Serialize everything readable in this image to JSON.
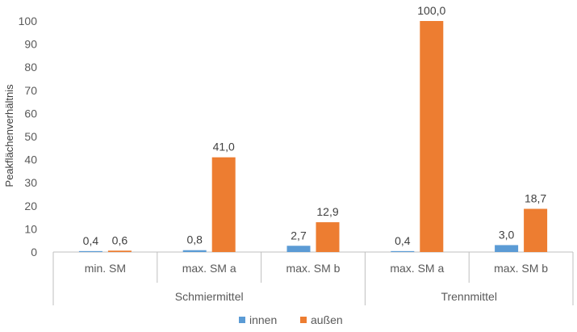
{
  "chart_data": {
    "type": "bar",
    "title": "",
    "xlabel": "",
    "ylabel": "Peakflächenverhältnis",
    "ylim": [
      0,
      100
    ],
    "yticks": [
      0,
      10,
      20,
      30,
      40,
      50,
      60,
      70,
      80,
      90,
      100
    ],
    "grid": false,
    "legend_position": "bottom",
    "groups": [
      {
        "label": "Schmiermittel",
        "categories": [
          "min. SM",
          "max. SM a",
          "max. SM b"
        ]
      },
      {
        "label": "Trennmittel",
        "categories": [
          "max. SM a",
          "max. SM b"
        ]
      }
    ],
    "categories": [
      "min. SM",
      "max. SM a",
      "max. SM b",
      "max. SM a",
      "max. SM b"
    ],
    "series": [
      {
        "name": "innen",
        "color": "#5B9BD5",
        "values": [
          0.4,
          0.8,
          2.7,
          0.4,
          3.0
        ],
        "labels": [
          "0,4",
          "0,8",
          "2,7",
          "0,4",
          "3,0"
        ]
      },
      {
        "name": "außen",
        "color": "#ED7D31",
        "values": [
          0.6,
          41.0,
          12.9,
          100.0,
          18.7
        ],
        "labels": [
          "0,6",
          "41,0",
          "12,9",
          "100,0",
          "18,7"
        ]
      }
    ]
  }
}
